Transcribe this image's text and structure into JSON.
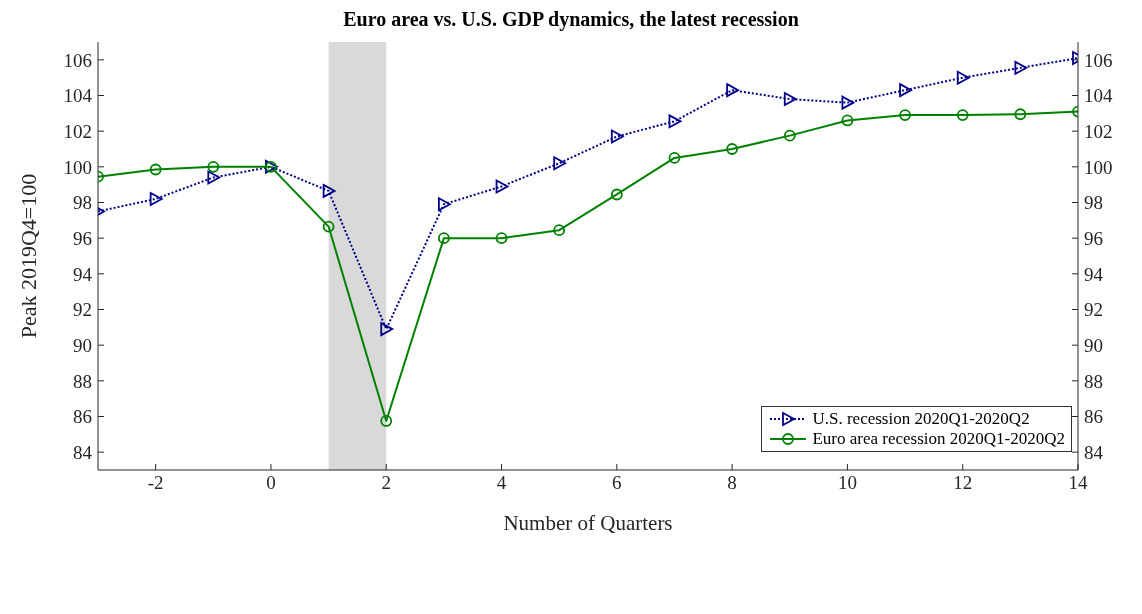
{
  "chart_data": {
    "type": "line",
    "title": "Euro area vs. U.S. GDP dynamics, the latest recession",
    "xlabel": "Number of Quarters",
    "ylabel": "Peak 2019Q4=100",
    "x": [
      -3,
      -2,
      -1,
      0,
      1,
      2,
      3,
      4,
      5,
      6,
      7,
      8,
      9,
      10,
      11,
      12,
      13,
      14
    ],
    "series": [
      {
        "name": "U.S. recession 2020Q1-2020Q2",
        "color": "#00008b",
        "marker": "triangle",
        "line_style": "dotted",
        "values": [
          97.5,
          98.2,
          99.4,
          100,
          98.65,
          90.9,
          97.9,
          98.9,
          100.2,
          101.7,
          102.55,
          104.3,
          103.8,
          103.6,
          104.3,
          105,
          105.55,
          106.1
        ]
      },
      {
        "name": "Euro area recession 2020Q1-2020Q2",
        "color": "#008000",
        "marker": "circle",
        "line_style": "solid",
        "values": [
          99.45,
          99.85,
          100,
          100,
          96.65,
          85.75,
          96,
          96,
          96.45,
          98.45,
          100.5,
          101,
          101.75,
          102.6,
          102.9,
          102.9,
          102.95,
          103.1
        ]
      }
    ],
    "xlim": [
      -3,
      14
    ],
    "xticks": [
      -2,
      0,
      2,
      4,
      6,
      8,
      10,
      12,
      14
    ],
    "ylim": [
      83,
      107
    ],
    "yticks": [
      84,
      86,
      88,
      90,
      92,
      94,
      96,
      98,
      100,
      102,
      104,
      106
    ],
    "y2lim": [
      83,
      107
    ],
    "y2ticks": [
      84,
      86,
      88,
      90,
      92,
      94,
      96,
      98,
      100,
      102,
      104,
      106
    ],
    "bands": [
      {
        "axis": "x",
        "from": 1,
        "to": 2,
        "label": null,
        "color": "#d9d9d9"
      }
    ],
    "grid": false,
    "legend": "bottom right"
  }
}
